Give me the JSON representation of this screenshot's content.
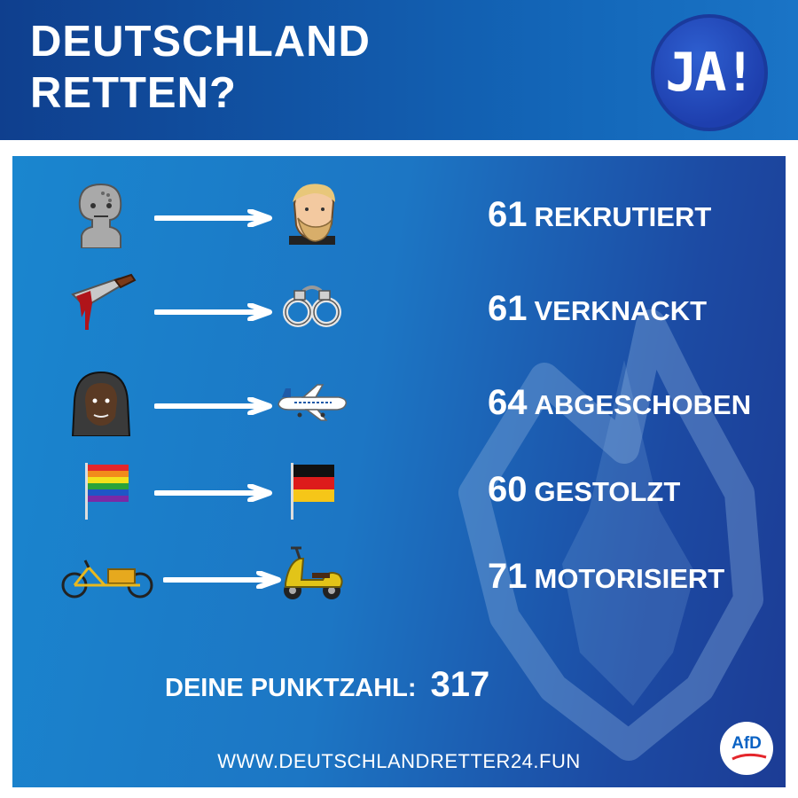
{
  "header": {
    "title_line1": "DEUTSCHLAND",
    "title_line2": "RETTEN?",
    "badge_text": "JA!",
    "badge_icon": "ja-badge-icon"
  },
  "rows": [
    {
      "from_icon": "npc-face-icon",
      "to_icon": "chad-face-icon",
      "value": "61",
      "label": "REKRUTIERT"
    },
    {
      "from_icon": "bloody-knife-icon",
      "to_icon": "handcuffs-icon",
      "value": "61",
      "label": "VERKNACKT"
    },
    {
      "from_icon": "hooded-man-icon",
      "to_icon": "airplane-icon",
      "value": "64",
      "label": "ABGESCHOBEN"
    },
    {
      "from_icon": "rainbow-flag-icon",
      "to_icon": "german-flag-icon",
      "value": "60",
      "label": "GESTOLZT"
    },
    {
      "from_icon": "cargo-bike-icon",
      "to_icon": "scooter-icon",
      "value": "71",
      "label": "MOTORISIERT"
    }
  ],
  "score": {
    "label": "DEINE PUNKTZAHL:",
    "value": "317"
  },
  "footer": {
    "url": "WWW.DEUTSCHLANDRETTER24.FUN",
    "logo_text": "AfD"
  },
  "colors": {
    "header_blue": "#0f3f8e",
    "card_blue": "#1a86cf",
    "arrow_white": "#ffffff"
  }
}
